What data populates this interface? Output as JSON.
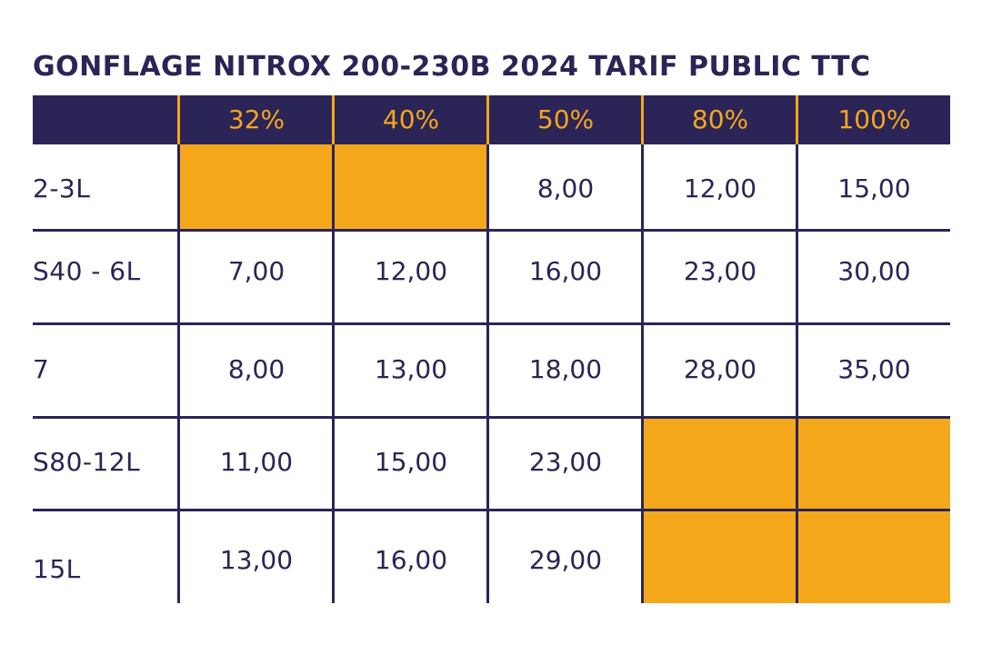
{
  "title": "GONFLAGE NITROX 200-230B 2024 TARIF PUBLIC TTC",
  "columns": [
    "32%",
    "40%",
    "50%",
    "80%",
    "100%"
  ],
  "rows": [
    {
      "label": "2-3L",
      "values": [
        "",
        "",
        "8,00",
        "12,00",
        "15,00"
      ],
      "unavailable": [
        true,
        true,
        false,
        false,
        false
      ]
    },
    {
      "label": "S40 - 6L",
      "values": [
        "7,00",
        "12,00",
        "16,00",
        "23,00",
        "30,00"
      ],
      "unavailable": [
        false,
        false,
        false,
        false,
        false
      ]
    },
    {
      "label": "7",
      "values": [
        "8,00",
        "13,00",
        "18,00",
        "28,00",
        "35,00"
      ],
      "unavailable": [
        false,
        false,
        false,
        false,
        false
      ]
    },
    {
      "label": "S80-12L",
      "values": [
        "11,00",
        "15,00",
        "23,00",
        "",
        ""
      ],
      "unavailable": [
        false,
        false,
        false,
        true,
        true
      ]
    },
    {
      "label": "15L",
      "values": [
        "13,00",
        "16,00",
        "29,00",
        "",
        ""
      ],
      "unavailable": [
        false,
        false,
        false,
        true,
        true
      ]
    }
  ],
  "colors": {
    "navy": "#2b2456",
    "orange": "#f5a71c",
    "background": "#ffffff"
  }
}
